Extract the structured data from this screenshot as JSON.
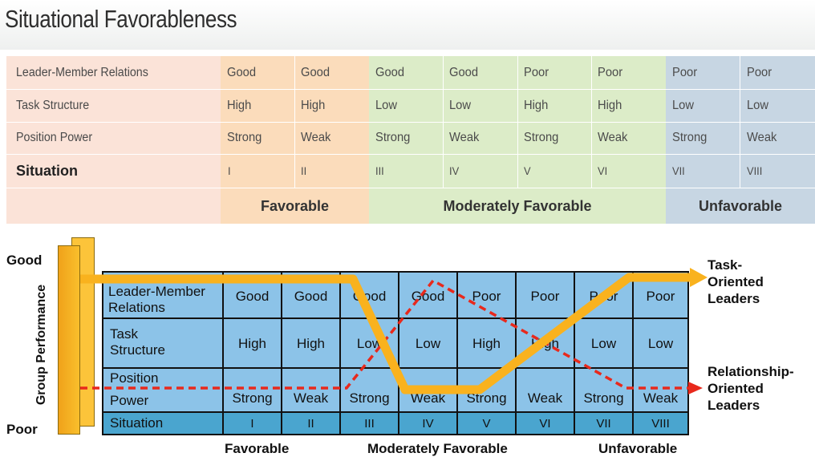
{
  "top": {
    "title": "Situational Favorableness",
    "row_labels": [
      "Leader-Member Relations",
      "Task Structure",
      "Position Power",
      "Situation"
    ],
    "columns": [
      {
        "lmr": "Good",
        "task": "High",
        "power": "Strong",
        "situation": "I"
      },
      {
        "lmr": "Good",
        "task": "High",
        "power": "Weak",
        "situation": "II"
      },
      {
        "lmr": "Good",
        "task": "Low",
        "power": "Strong",
        "situation": "III"
      },
      {
        "lmr": "Good",
        "task": "Low",
        "power": "Weak",
        "situation": "IV"
      },
      {
        "lmr": "Poor",
        "task": "High",
        "power": "Strong",
        "situation": "V"
      },
      {
        "lmr": "Poor",
        "task": "High",
        "power": "Weak",
        "situation": "VI"
      },
      {
        "lmr": "Poor",
        "task": "Low",
        "power": "Strong",
        "situation": "VII"
      },
      {
        "lmr": "Poor",
        "task": "Low",
        "power": "Weak",
        "situation": "VIII"
      }
    ],
    "categories": [
      "Favorable",
      "Moderately Favorable",
      "Unfavorable"
    ],
    "colors": {
      "label_bg": "#fbe3d8",
      "favorable_bg": "#fbdcbb",
      "moderate_bg": "#dcecc8",
      "unfavorable_bg": "#c7d6e3"
    }
  },
  "bottom": {
    "axis_top": "Good",
    "axis_bottom": "Poor",
    "axis_title": "Group Performance",
    "row_labels": {
      "lmr_line1": "Leader-Member",
      "lmr_line2": "Relations",
      "task_line1": "Task",
      "task_line2": "Structure",
      "power_line1": "Position",
      "power_line2": "Power",
      "situation": "Situation"
    },
    "columns": [
      {
        "lmr": "Good",
        "task": "High",
        "power": "Strong",
        "situation": "I"
      },
      {
        "lmr": "Good",
        "task": "High",
        "power": "Weak",
        "situation": "II"
      },
      {
        "lmr": "Good",
        "task": "Low",
        "power": "Strong",
        "situation": "III"
      },
      {
        "lmr": "Good",
        "task": "Low",
        "power": "Weak",
        "situation": "IV"
      },
      {
        "lmr": "Poor",
        "task": "High",
        "power": "Strong",
        "situation": "V"
      },
      {
        "lmr": "Poor",
        "task": "High",
        "power": "Weak",
        "situation": "VI"
      },
      {
        "lmr": "Poor",
        "task": "Low",
        "power": "Strong",
        "situation": "VII"
      },
      {
        "lmr": "Poor",
        "task": "Low",
        "power": "Weak",
        "situation": "VIII"
      }
    ],
    "task_line": {
      "line1": "Task-",
      "line2": "Oriented",
      "line3": "Leaders",
      "color": "#f9b21e"
    },
    "relationship_line": {
      "line1": "Relationship-",
      "line2": "Oriented",
      "line3": "Leaders",
      "color": "#e8291c"
    },
    "categories": [
      "Favorable",
      "Moderately Favorable",
      "Unfavorable"
    ],
    "colors": {
      "grid_bg": "#8cc3e8",
      "situation_row_bg": "#4aa5cf",
      "performance_bar": "#f9b21e"
    }
  }
}
